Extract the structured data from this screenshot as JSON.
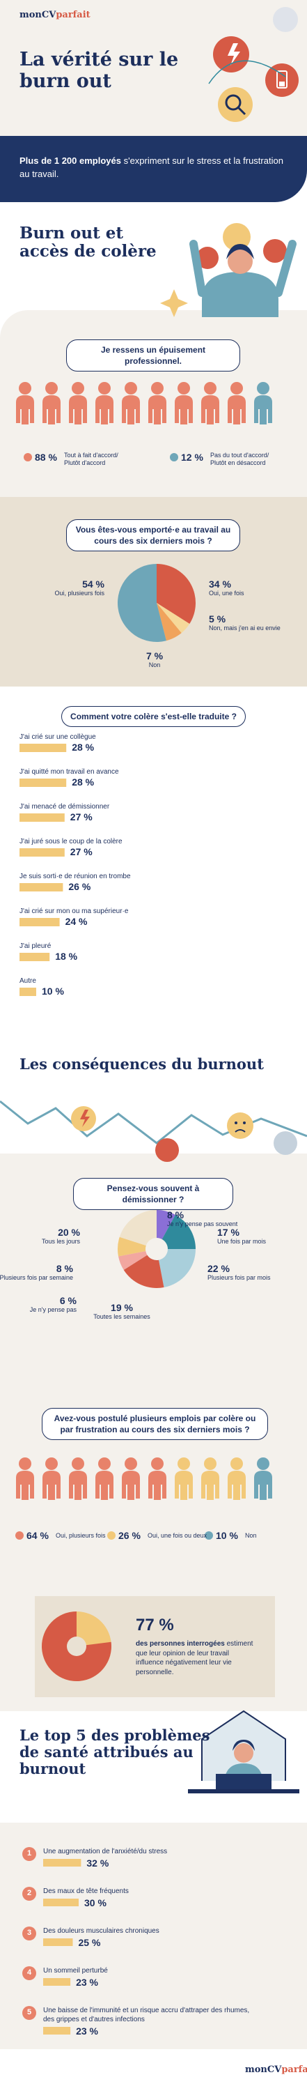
{
  "header": {
    "logo": {
      "brand": "monCV",
      "accent": "parfait"
    },
    "title": "La vérité sur le burn out"
  },
  "intro": {
    "strong": "Plus de 1 200 employés",
    "text": "s'expriment sur le stress et la frustration au travail."
  },
  "section_anger": {
    "heading": "Burn out et accès de colère"
  },
  "exhaustion": {
    "question": "Je ressens un épuisement professionnel.",
    "legend": [
      {
        "value": "88 %",
        "label": "Tout à fait d'accord/ Plutôt d'accord",
        "color": "#e8826a"
      },
      {
        "value": "12 %",
        "label": "Pas du tout d'accord/ Plutôt en désaccord",
        "color": "#6ea6b8"
      }
    ]
  },
  "outburst": {
    "question": "Vous êtes-vous emporté·e au travail au cours des six derniers mois ?",
    "slices": [
      {
        "value": 34,
        "value_label": "34 %",
        "label": "Oui, une fois",
        "color": "#d65a45"
      },
      {
        "value": 5,
        "value_label": "5 %",
        "label": "Non, mais j'en ai eu envie",
        "color": "#f6d99a"
      },
      {
        "value": 7,
        "value_label": "7 %",
        "label": "Non",
        "color": "#f0a35c"
      },
      {
        "value": 54,
        "value_label": "54 %",
        "label": "Oui, plusieurs fois",
        "color": "#6ea6b8"
      }
    ]
  },
  "expression": {
    "question": "Comment votre colère s'est-elle traduite ?",
    "color": "#f2c979",
    "items": [
      {
        "label": "J'ai crié sur une collègue",
        "value": 28,
        "value_label": "28 %"
      },
      {
        "label": "J'ai quitté mon travail en avance",
        "value": 28,
        "value_label": "28 %"
      },
      {
        "label": "J'ai menacé de démissionner",
        "value": 27,
        "value_label": "27 %"
      },
      {
        "label": "J'ai juré sous le coup de la colère",
        "value": 27,
        "value_label": "27 %"
      },
      {
        "label": "Je suis sorti·e de réunion en trombe",
        "value": 26,
        "value_label": "26 %"
      },
      {
        "label": "J'ai crié sur mon ou ma supérieur·e",
        "value": 24,
        "value_label": "24 %"
      },
      {
        "label": "J'ai pleuré",
        "value": 18,
        "value_label": "18 %"
      },
      {
        "label": "Autre",
        "value": 10,
        "value_label": "10 %"
      }
    ]
  },
  "consequences": {
    "heading": "Les conséquences du burnout"
  },
  "resign": {
    "question": "Pensez-vous souvent à démissionner ?",
    "slices": [
      {
        "value": 8,
        "value_label": "8 %",
        "label": "Je n'y pense pas souvent",
        "color": "#8a6fd6"
      },
      {
        "value": 17,
        "value_label": "17 %",
        "label": "Une fois par mois",
        "color": "#2f8a9c"
      },
      {
        "value": 22,
        "value_label": "22 %",
        "label": "Plusieurs fois par mois",
        "color": "#a9cfdb"
      },
      {
        "value": 19,
        "value_label": "19 %",
        "label": "Toutes les semaines",
        "color": "#d65a45"
      },
      {
        "value": 6,
        "value_label": "6 %",
        "label": "Je n'y pense pas",
        "color": "#f2a7a0"
      },
      {
        "value": 8,
        "value_label": "8 %",
        "label": "Plusieurs fois par semaine",
        "color": "#f2c979"
      },
      {
        "value": 20,
        "value_label": "20 %",
        "label": "Tous les jours",
        "color": "#efe3cc"
      }
    ]
  },
  "applied": {
    "question": "Avez-vous postulé plusieurs emplois par colère ou par frustration au cours des six derniers mois ?",
    "legend": [
      {
        "value": "64 %",
        "label": "Oui, plusieurs fois",
        "color": "#e8826a"
      },
      {
        "value": "26 %",
        "label": "Oui, une fois ou deux",
        "color": "#f2c979"
      },
      {
        "value": "10 %",
        "label": "Non",
        "color": "#6ea6b8"
      }
    ]
  },
  "opinion": {
    "value": 77,
    "value_label": "77 %",
    "color": "#d65a45",
    "strong": "des personnes interrogées",
    "text": "estiment que leur opinion de leur travail influence négativement leur vie personnelle."
  },
  "health": {
    "heading": "Le top 5 des problèmes de santé attribués au burnout",
    "color": "#f2c979",
    "items": [
      {
        "rank": "1",
        "label": "Une augmentation de l'anxiété/du stress",
        "value": 32,
        "value_label": "32 %"
      },
      {
        "rank": "2",
        "label": "Des maux de tête fréquents",
        "value": 30,
        "value_label": "30 %"
      },
      {
        "rank": "3",
        "label": "Des douleurs musculaires chroniques",
        "value": 25,
        "value_label": "25 %"
      },
      {
        "rank": "4",
        "label": "Un sommeil perturbé",
        "value": 23,
        "value_label": "23 %"
      },
      {
        "rank": "5",
        "label": "Une baisse de l'immunité et un risque accru d'attraper des rhumes, des grippes et d'autres infections",
        "value": 23,
        "value_label": "23 %"
      }
    ]
  },
  "footer": {
    "logo": {
      "brand": "monCV",
      "accent": "parfait"
    }
  }
}
